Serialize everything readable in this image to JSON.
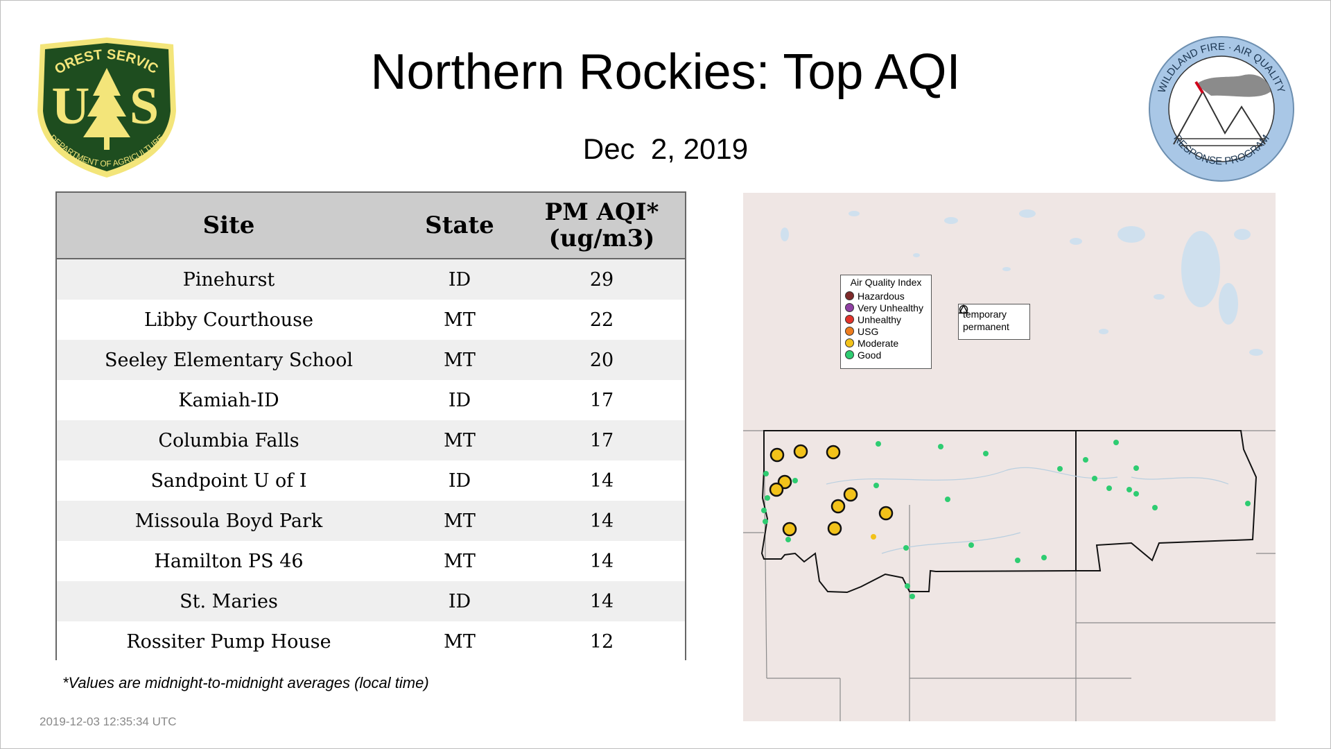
{
  "header": {
    "title": "Northern Rockies: Top AQI",
    "date": "Dec  2, 2019"
  },
  "logos": {
    "left": {
      "top_text": "FOREST SERVICE",
      "letters": "U S",
      "bottom_text": "DEPARTMENT OF AGRICULTURE",
      "colors": {
        "green": "#1e4d1f",
        "gold": "#f3e57a"
      }
    },
    "right": {
      "top_text": "WILDLAND FIRE · AIR QUALITY",
      "bottom_text": "RESPONSE PROGRAM",
      "colors": {
        "ring": "#a9c7e6",
        "plume": "#8b8b8b"
      }
    }
  },
  "table": {
    "headers": {
      "site": "Site",
      "state": "State",
      "aqi_line1": "PM AQI*",
      "aqi_line2": "(ug/m3)"
    },
    "rows": [
      {
        "site": "Pinehurst",
        "state": "ID",
        "aqi": "29"
      },
      {
        "site": "Libby Courthouse",
        "state": "MT",
        "aqi": "22"
      },
      {
        "site": "Seeley Elementary School",
        "state": "MT",
        "aqi": "20"
      },
      {
        "site": "Kamiah-ID",
        "state": "ID",
        "aqi": "17"
      },
      {
        "site": "Columbia Falls",
        "state": "MT",
        "aqi": "17"
      },
      {
        "site": "Sandpoint U of I",
        "state": "ID",
        "aqi": "14"
      },
      {
        "site": "Missoula Boyd Park",
        "state": "MT",
        "aqi": "14"
      },
      {
        "site": "Hamilton PS 46",
        "state": "MT",
        "aqi": "14"
      },
      {
        "site": "St. Maries",
        "state": "ID",
        "aqi": "14"
      },
      {
        "site": "Rossiter Pump House",
        "state": "MT",
        "aqi": "12"
      }
    ]
  },
  "footnote": "*Values are midnight-to-midnight averages (local time)",
  "timestamp": "2019-12-03 12:35:34 UTC",
  "map": {
    "legend": {
      "title": "Air Quality Index",
      "items": [
        {
          "label": "Hazardous",
          "color": "#7e2a2a"
        },
        {
          "label": "Very Unhealthy",
          "color": "#8f3fa3"
        },
        {
          "label": "Unhealthy",
          "color": "#e2332b"
        },
        {
          "label": "USG",
          "color": "#ee7d1e"
        },
        {
          "label": "Moderate",
          "color": "#f2c21a"
        },
        {
          "label": "Good",
          "color": "#2ecc71"
        }
      ]
    },
    "type_legend": {
      "items": [
        {
          "label": "temporary",
          "shape": "circle"
        },
        {
          "label": "permanent",
          "shape": "triangle"
        }
      ]
    },
    "colors": {
      "land": "#efe6e4",
      "water": "#cfe0ee",
      "moderate": "#f2c21a",
      "good": "#2ecc71"
    }
  }
}
